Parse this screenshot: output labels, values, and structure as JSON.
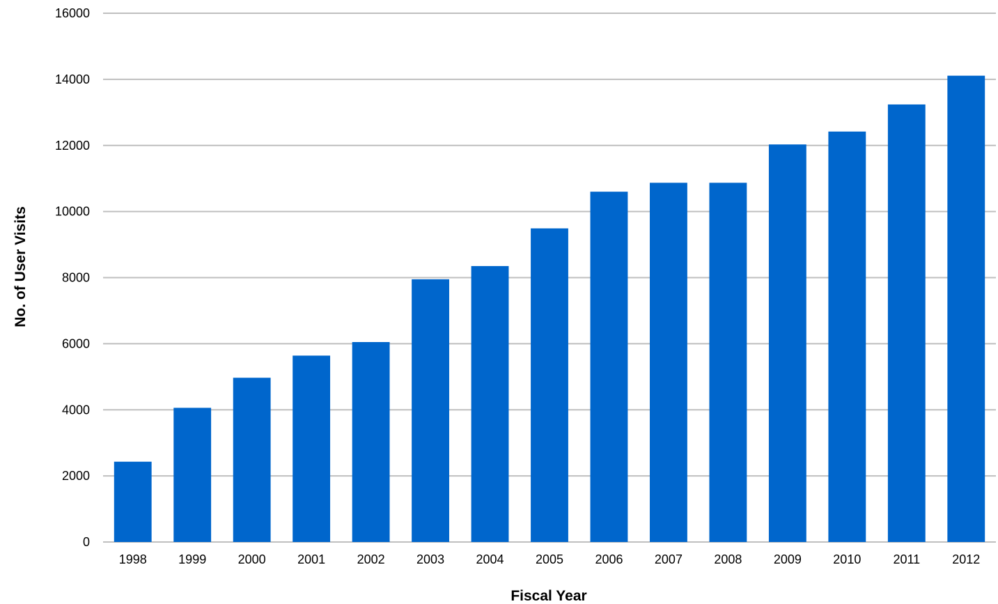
{
  "chart_data": {
    "type": "bar",
    "title": "",
    "xlabel": "Fiscal Year",
    "ylabel": "No. of User Visits",
    "categories": [
      "1998",
      "1999",
      "2000",
      "2001",
      "2002",
      "2003",
      "2004",
      "2005",
      "2006",
      "2007",
      "2008",
      "2009",
      "2010",
      "2011",
      "2012"
    ],
    "values": [
      2430,
      4060,
      4970,
      5640,
      6050,
      7950,
      8350,
      9490,
      10600,
      10870,
      10870,
      12030,
      12420,
      13240,
      14110
    ],
    "ylim": [
      0,
      16000
    ],
    "yticks": [
      "0",
      "2000",
      "4000",
      "6000",
      "8000",
      "10000",
      "12000",
      "14000",
      "16000"
    ],
    "grid": true,
    "legend": "none",
    "colors": {
      "bar": "#0066CC",
      "grid": "#BFBFBF",
      "text": "#000000"
    }
  }
}
